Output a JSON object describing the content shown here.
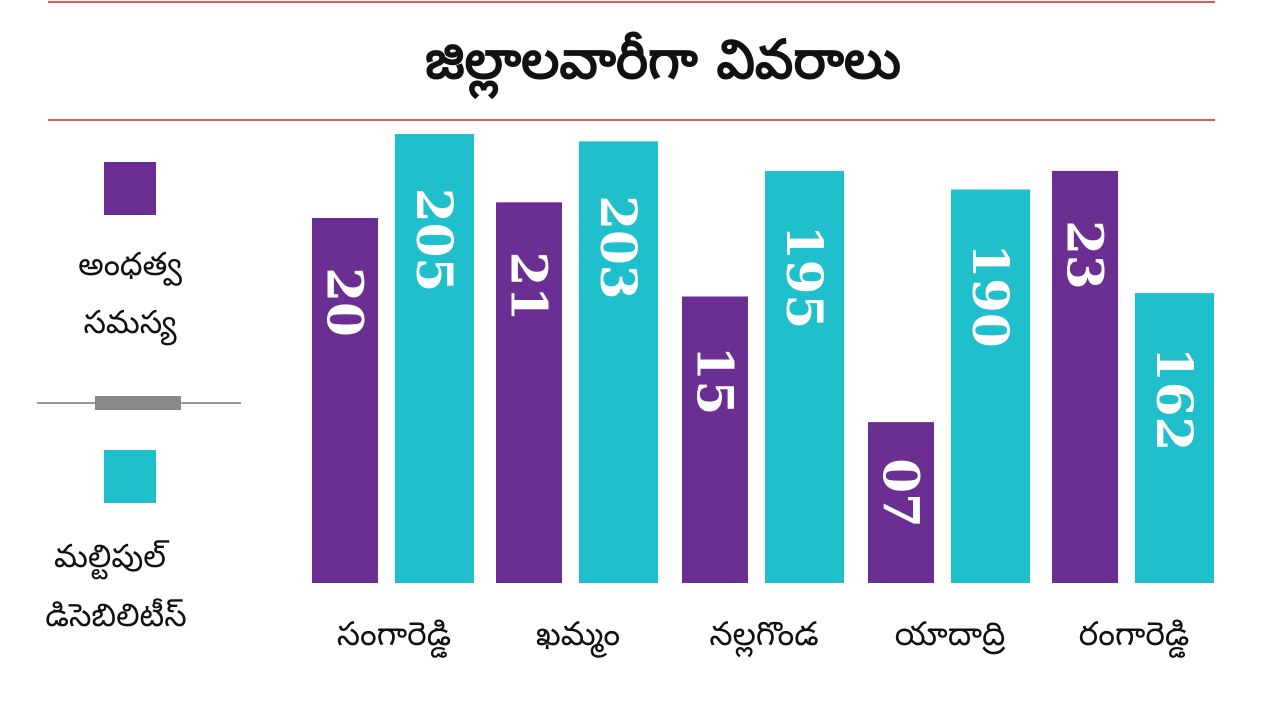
{
  "chart_data": {
    "type": "bar",
    "title": "జిల్లాలవారీగా వివరాలు",
    "categories": [
      "సంగారెడ్డి",
      "ఖమ్మం",
      "నల్లగొండ",
      "యాదాద్రి",
      "రంగారెడ్డి"
    ],
    "series": [
      {
        "name": "అంధత్వ సమస్య",
        "values": [
          20,
          21,
          15,
          7,
          23
        ],
        "labels": [
          "20",
          "21",
          "15",
          "07",
          "23"
        ],
        "color": "#6b2f93"
      },
      {
        "name": "మల్టిపుల్ డిసెబిలిటీస్",
        "values": [
          205,
          203,
          195,
          190,
          162
        ],
        "labels": [
          "205",
          "203",
          "195",
          "190",
          "162"
        ],
        "color": "#1fbfcc"
      }
    ],
    "legend_lines": [
      [
        "అంధత్వ",
        "సమస్య"
      ],
      [
        "మల్టిపుల్",
        "డిసెబిలిటీస్"
      ]
    ],
    "legend": "left",
    "grid": false,
    "xlabel": "",
    "ylabel": "",
    "accent_color": "#e05a5a"
  }
}
